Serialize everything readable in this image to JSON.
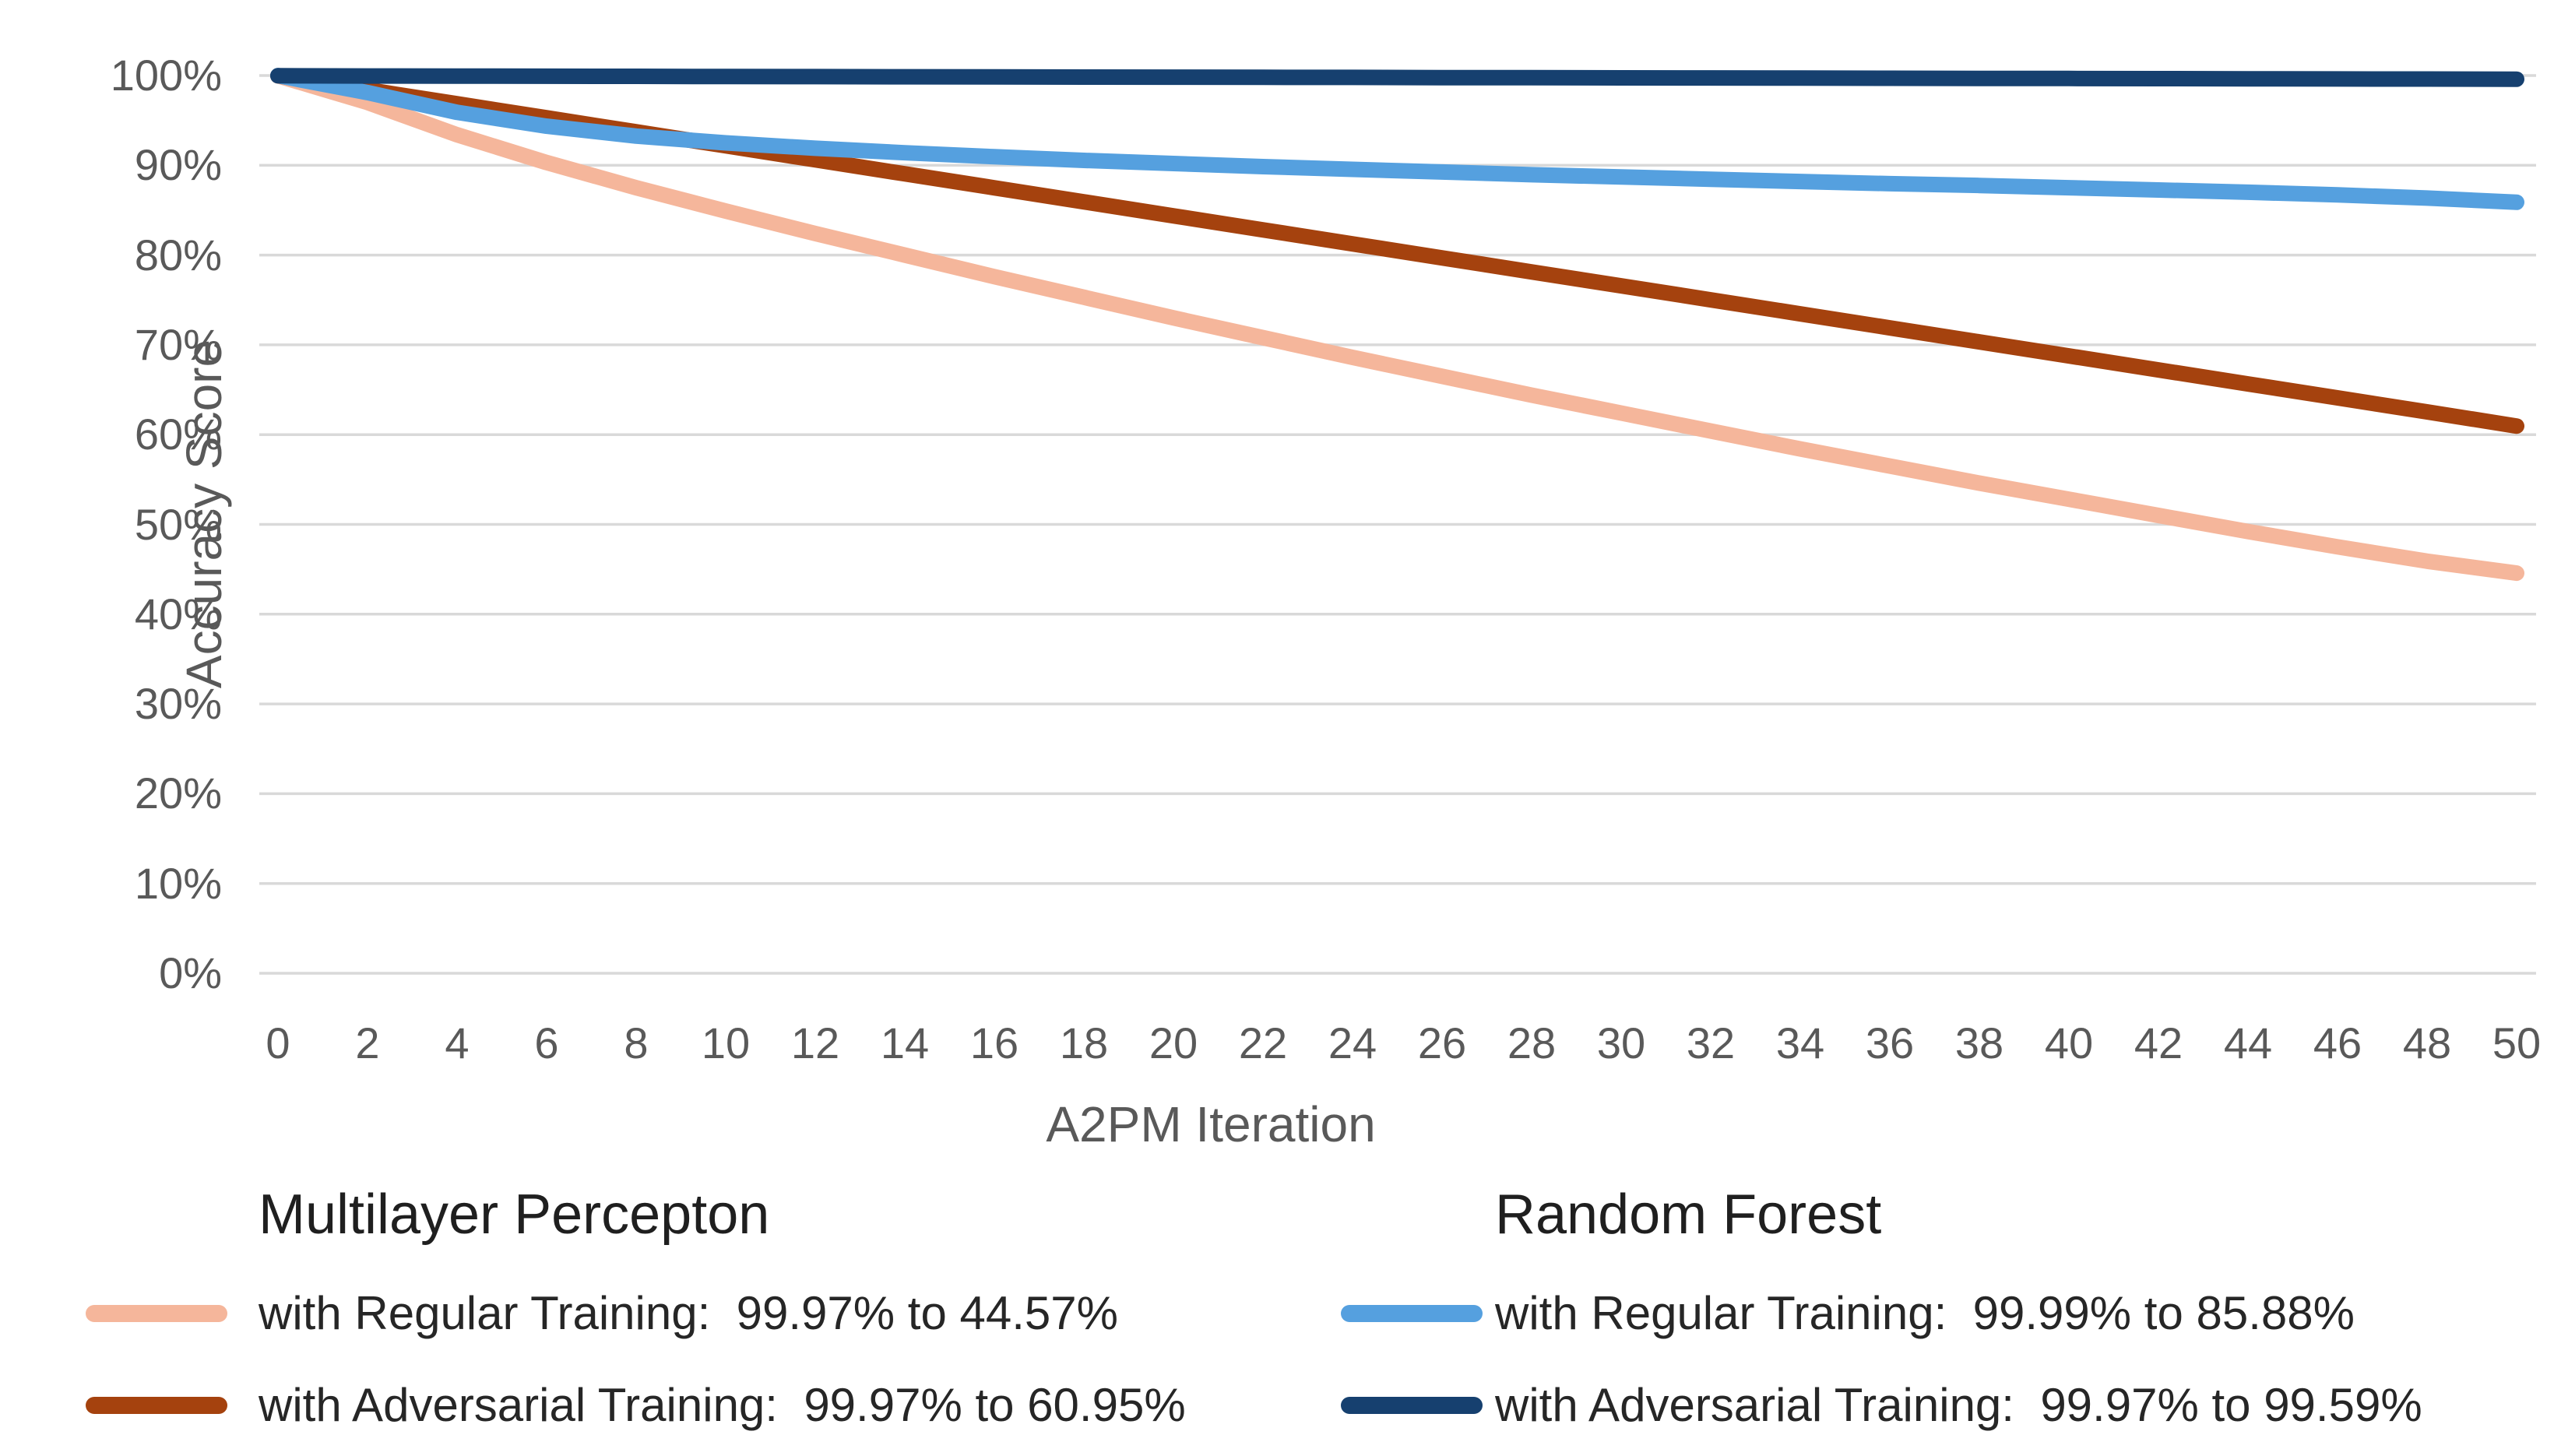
{
  "axis": {
    "x_title": "A2PM Iteration",
    "y_title": "Accuracy Score",
    "y_tick_labels": [
      "100%",
      "90%",
      "80%",
      "70%",
      "60%",
      "50%",
      "40%",
      "30%",
      "20%",
      "10%",
      "0%"
    ],
    "x_tick_labels": [
      "0",
      "2",
      "4",
      "6",
      "8",
      "10",
      "12",
      "14",
      "16",
      "18",
      "20",
      "22",
      "24",
      "26",
      "28",
      "30",
      "32",
      "34",
      "36",
      "38",
      "40",
      "42",
      "44",
      "46",
      "48",
      "50"
    ]
  },
  "colors": {
    "mlp_regular": "#F5B69B",
    "mlp_adversarial": "#A5420E",
    "rf_regular": "#55A0DF",
    "rf_adversarial": "#16406F",
    "gridline": "#D9D9D9",
    "axis_text": "#595959",
    "legend_text": "#262626"
  },
  "legend": {
    "groups": [
      {
        "title": "Multilayer Percepton",
        "items": [
          {
            "label": "with Regular Training:  99.97% to 44.57%",
            "series": "mlp_regular"
          },
          {
            "label": "with Adversarial Training:  99.97% to 60.95%",
            "series": "mlp_adversarial"
          }
        ]
      },
      {
        "title": "Random Forest",
        "items": [
          {
            "label": "with Regular Training:  99.99% to 85.88%",
            "series": "rf_regular"
          },
          {
            "label": "with Adversarial Training:  99.97% to 99.59%",
            "series": "rf_adversarial"
          }
        ]
      }
    ]
  },
  "chart_data": {
    "type": "line",
    "title": "",
    "xlabel": "A2PM Iteration",
    "ylabel": "Accuracy Score",
    "xlim": [
      0,
      50
    ],
    "ylim": [
      0,
      100
    ],
    "x_tick_step": 2,
    "y_tick_step": 10,
    "grid": true,
    "legend_position": "bottom",
    "x": [
      0,
      2,
      4,
      6,
      8,
      10,
      12,
      14,
      16,
      18,
      20,
      22,
      24,
      26,
      28,
      30,
      32,
      34,
      36,
      38,
      40,
      42,
      44,
      46,
      48,
      50
    ],
    "series": [
      {
        "key": "mlp_regular",
        "name": "Multilayer Percepton with Regular Training",
        "start": 99.97,
        "end": 44.57,
        "values": [
          99.97,
          97.0,
          93.4,
          90.3,
          87.5,
          84.9,
          82.4,
          80.0,
          77.6,
          75.3,
          73.0,
          70.8,
          68.6,
          66.5,
          64.4,
          62.4,
          60.4,
          58.4,
          56.5,
          54.6,
          52.8,
          51.0,
          49.2,
          47.5,
          45.9,
          44.57
        ]
      },
      {
        "key": "mlp_adversarial",
        "name": "Multilayer Percepton with Adversarial Training",
        "start": 99.97,
        "end": 60.95,
        "values": [
          99.97,
          98.41,
          96.85,
          95.29,
          93.73,
          92.17,
          90.61,
          89.05,
          87.49,
          85.93,
          84.37,
          82.81,
          81.25,
          79.69,
          78.13,
          76.57,
          75.01,
          73.45,
          71.89,
          70.33,
          68.77,
          67.21,
          65.65,
          64.09,
          62.53,
          60.95
        ]
      },
      {
        "key": "rf_regular",
        "name": "Random Forest with Regular Training",
        "start": 99.99,
        "end": 85.88,
        "values": [
          99.99,
          98.1,
          95.9,
          94.35,
          93.25,
          92.5,
          91.9,
          91.4,
          90.95,
          90.55,
          90.2,
          89.85,
          89.55,
          89.25,
          88.95,
          88.7,
          88.45,
          88.2,
          87.95,
          87.75,
          87.5,
          87.25,
          87.0,
          86.7,
          86.35,
          85.88
        ]
      },
      {
        "key": "rf_adversarial",
        "name": "Random Forest with Adversarial Training",
        "start": 99.97,
        "end": 99.59,
        "values": [
          99.97,
          99.95,
          99.94,
          99.92,
          99.91,
          99.89,
          99.88,
          99.86,
          99.85,
          99.83,
          99.82,
          99.8,
          99.79,
          99.77,
          99.76,
          99.74,
          99.73,
          99.71,
          99.7,
          99.68,
          99.67,
          99.65,
          99.64,
          99.62,
          99.61,
          99.59
        ]
      }
    ]
  }
}
